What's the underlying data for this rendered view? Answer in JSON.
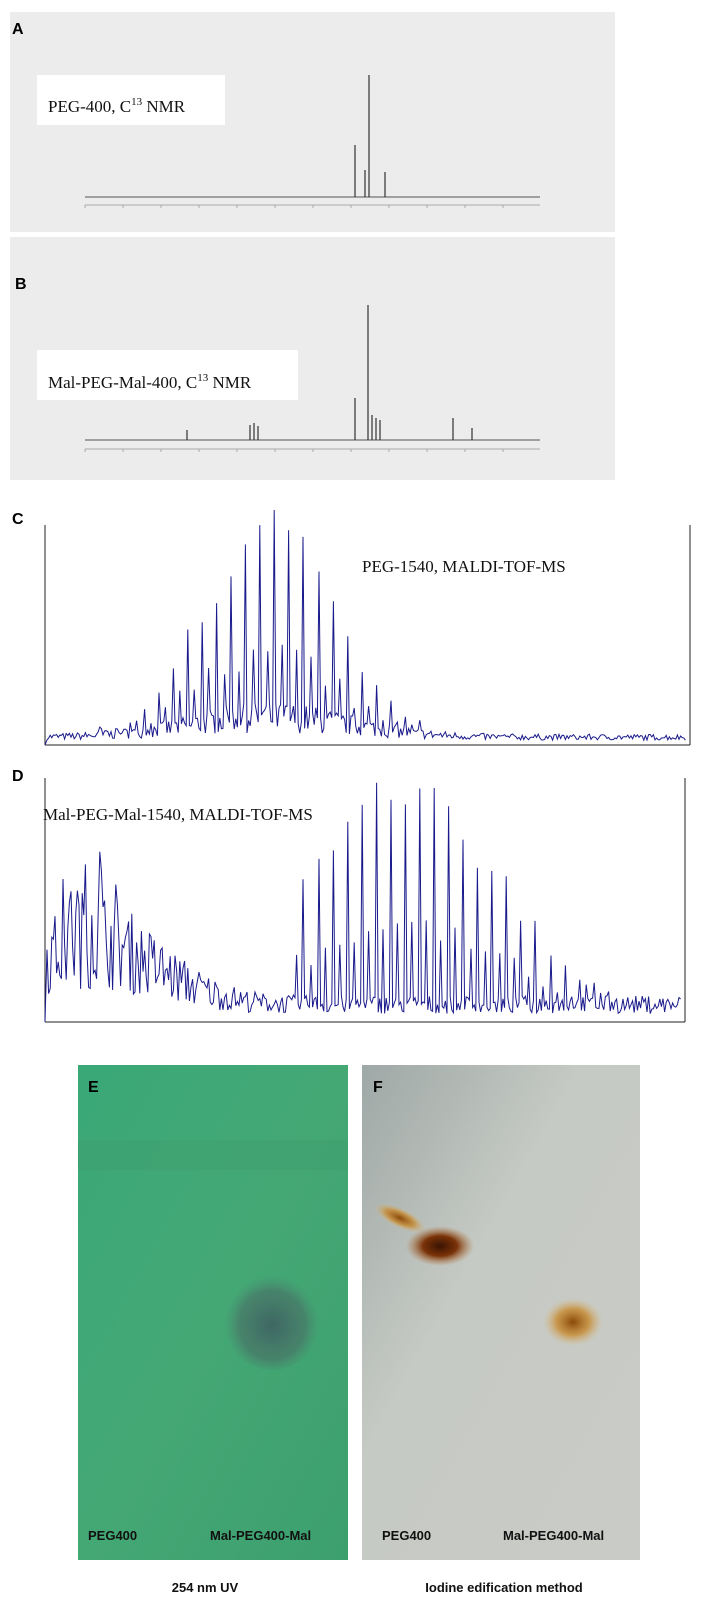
{
  "panels": [
    {
      "label": "A",
      "title": {
        "text": "PEG-400, C",
        "sup": "13",
        "after": " NMR"
      }
    },
    {
      "label": "B",
      "title": {
        "text": "Mal-PEG-Mal-400, C",
        "sup": "13",
        "after": " NMR"
      }
    },
    {
      "label": "C",
      "title": {
        "text": "PEG-1540, MALDI-TOF-MS"
      }
    },
    {
      "label": "D",
      "title": {
        "text": "Mal-PEG-Mal-1540, MALDI-TOF-MS"
      }
    }
  ],
  "tlc": [
    {
      "label": "E",
      "lanes": [
        "PEG400",
        "Mal-PEG400-Mal"
      ],
      "caption": "254 nm UV"
    },
    {
      "label": "F",
      "lanes": [
        "PEG400",
        "Mal-PEG400-Mal"
      ],
      "caption": "Iodine edification method"
    }
  ]
}
